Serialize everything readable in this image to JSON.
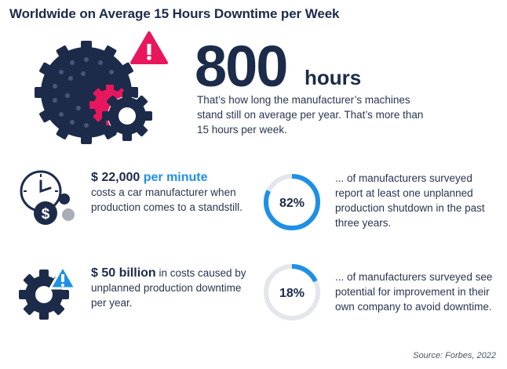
{
  "title": "Worldwide on Average 15 Hours Downtime per Week",
  "hero": {
    "number": "800",
    "unit": "hours",
    "description": "That’s how long the manufacturer’s machines stand still on average per year. That’s more than 15 hours per week."
  },
  "stat1": {
    "amount": "$ 22,000",
    "accent": "per minute",
    "body": "costs a car manufacturer when production comes to a standstill."
  },
  "stat2": {
    "amount": "$ 50 billion",
    "body_inline": " in costs caused by unplanned production downtime per year."
  },
  "pct1": {
    "value": 82,
    "label": "82%",
    "text": "... of manufacturers surveyed report at least one unplanned production shutdown in the past three years."
  },
  "pct2": {
    "value": 18,
    "label": "18%",
    "text": "... of manufacturers surveyed see potential for improvement in their own company to avoid downtime."
  },
  "source": "Source: Forbes, 2022",
  "colors": {
    "navy": "#1c2b4a",
    "blue": "#1e90e6",
    "pink": "#e8175d",
    "gray": "#a9aeb6",
    "ring_bg": "#e3e6ea"
  },
  "icons": [
    "gears-warning-icon",
    "clock-dollar-icon",
    "gear-alert-icon"
  ]
}
